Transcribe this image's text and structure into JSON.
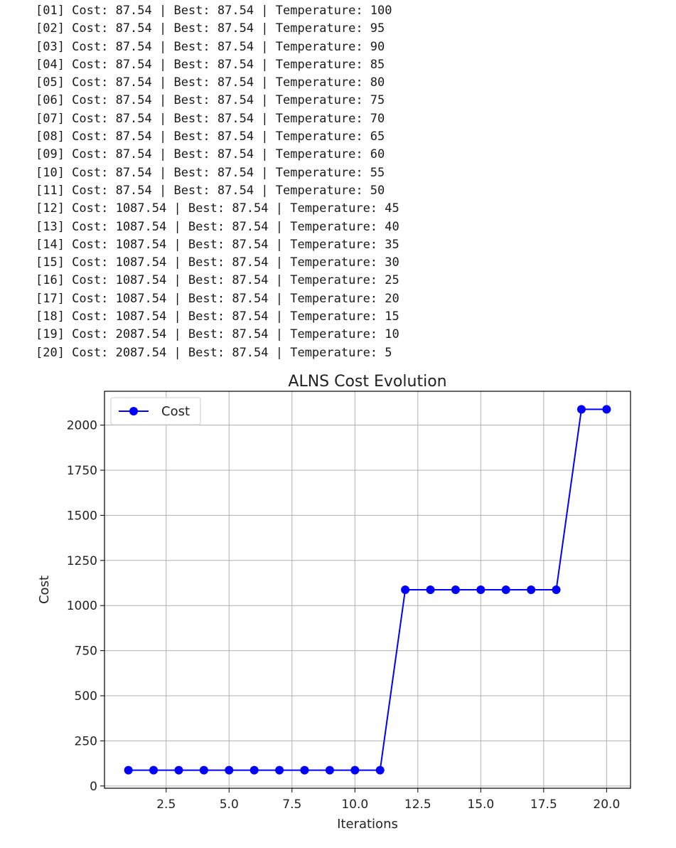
{
  "log_lines": [
    "[01] Cost: 87.54 | Best: 87.54 | Temperature: 100",
    "[02] Cost: 87.54 | Best: 87.54 | Temperature: 95",
    "[03] Cost: 87.54 | Best: 87.54 | Temperature: 90",
    "[04] Cost: 87.54 | Best: 87.54 | Temperature: 85",
    "[05] Cost: 87.54 | Best: 87.54 | Temperature: 80",
    "[06] Cost: 87.54 | Best: 87.54 | Temperature: 75",
    "[07] Cost: 87.54 | Best: 87.54 | Temperature: 70",
    "[08] Cost: 87.54 | Best: 87.54 | Temperature: 65",
    "[09] Cost: 87.54 | Best: 87.54 | Temperature: 60",
    "[10] Cost: 87.54 | Best: 87.54 | Temperature: 55",
    "[11] Cost: 87.54 | Best: 87.54 | Temperature: 50",
    "[12] Cost: 1087.54 | Best: 87.54 | Temperature: 45",
    "[13] Cost: 1087.54 | Best: 87.54 | Temperature: 40",
    "[14] Cost: 1087.54 | Best: 87.54 | Temperature: 35",
    "[15] Cost: 1087.54 | Best: 87.54 | Temperature: 30",
    "[16] Cost: 1087.54 | Best: 87.54 | Temperature: 25",
    "[17] Cost: 1087.54 | Best: 87.54 | Temperature: 20",
    "[18] Cost: 1087.54 | Best: 87.54 | Temperature: 15",
    "[19] Cost: 2087.54 | Best: 87.54 | Temperature: 10",
    "[20] Cost: 2087.54 | Best: 87.54 | Temperature: 5"
  ],
  "chart_data": {
    "type": "line",
    "title": "ALNS Cost Evolution",
    "xlabel": "Iterations",
    "ylabel": "Cost",
    "x": [
      1,
      2,
      3,
      4,
      5,
      6,
      7,
      8,
      9,
      10,
      11,
      12,
      13,
      14,
      15,
      16,
      17,
      18,
      19,
      20
    ],
    "series": [
      {
        "name": "Cost",
        "color": "#0000ff",
        "marker": "circle",
        "values": [
          87.54,
          87.54,
          87.54,
          87.54,
          87.54,
          87.54,
          87.54,
          87.54,
          87.54,
          87.54,
          87.54,
          1087.54,
          1087.54,
          1087.54,
          1087.54,
          1087.54,
          1087.54,
          1087.54,
          2087.54,
          2087.54
        ]
      }
    ],
    "xticks": [
      "2.5",
      "5.0",
      "7.5",
      "10.0",
      "12.5",
      "15.0",
      "17.5",
      "20.0"
    ],
    "yticks": [
      "0",
      "250",
      "500",
      "750",
      "1000",
      "1250",
      "1500",
      "1750",
      "2000"
    ],
    "xlim": [
      0.05,
      20.95
    ],
    "ylim": [
      -12.5,
      2187.5
    ],
    "grid": true,
    "legend_position": "top-left"
  }
}
